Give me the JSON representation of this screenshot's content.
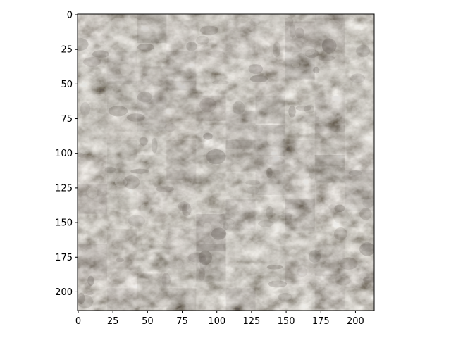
{
  "chart_data": {
    "type": "heatmap",
    "title": "",
    "xlabel": "",
    "ylabel": "",
    "xlim": [
      -0.5,
      213.5
    ],
    "ylim": [
      213.5,
      -0.5
    ],
    "y_inverted": true,
    "image_shape": [
      214,
      214
    ],
    "content": "stone / pebble texture image",
    "xticks": [
      0,
      25,
      50,
      75,
      100,
      125,
      150,
      175,
      200
    ],
    "yticks": [
      0,
      25,
      50,
      75,
      100,
      125,
      150,
      175,
      200
    ],
    "xtick_labels": [
      "0",
      "25",
      "50",
      "75",
      "100",
      "125",
      "150",
      "175",
      "200"
    ],
    "ytick_labels": [
      "0",
      "25",
      "50",
      "75",
      "100",
      "125",
      "150",
      "175",
      "200"
    ],
    "grid": false,
    "legend": "none",
    "colors": {
      "base": "#a9a59d",
      "light": "#d9d6d0",
      "dark": "#4e4540",
      "spine": "#000000"
    }
  }
}
